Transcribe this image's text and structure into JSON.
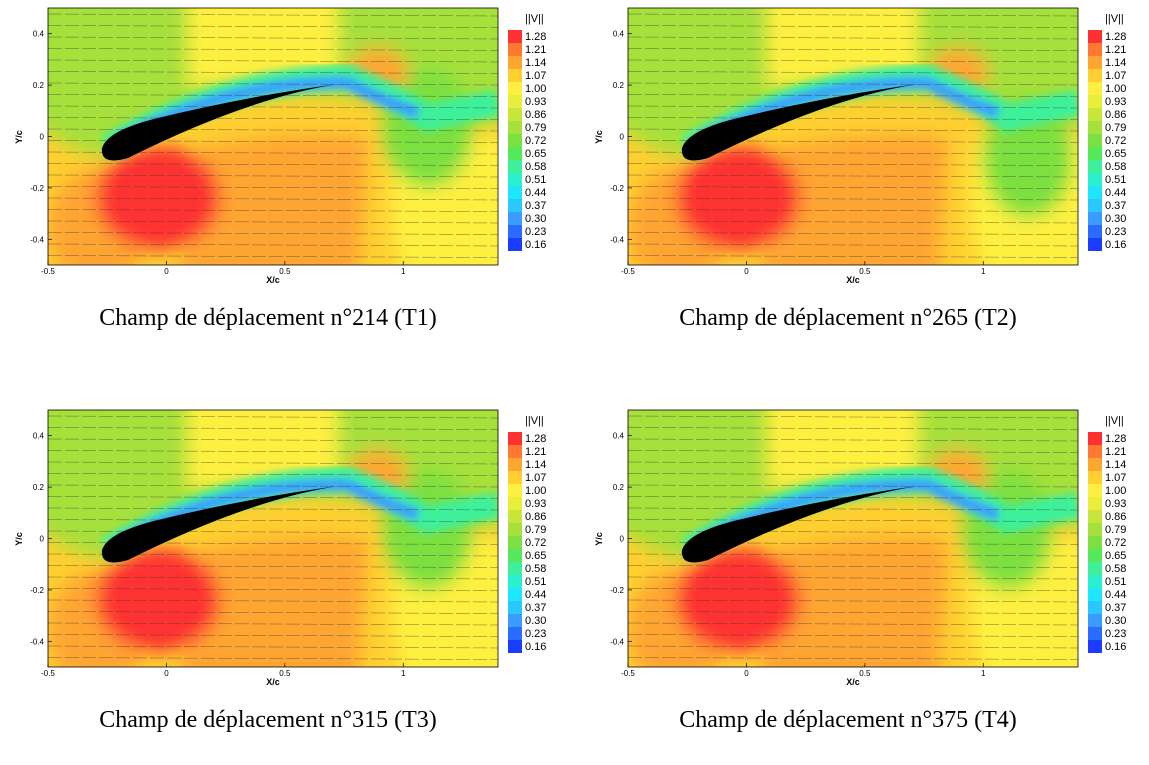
{
  "chart_data": [
    {
      "type": "contour",
      "caption": "Champ de déplacement n°214 (T1)",
      "x_label": "X/c",
      "y_label": "Y/c",
      "colorbar_title": "||V||",
      "xlim": [
        -0.5,
        1.4
      ],
      "ylim": [
        -0.5,
        0.5
      ],
      "xticks": [
        -0.5,
        0,
        0.5,
        1
      ],
      "yticks": [
        -0.4,
        -0.2,
        0,
        0.2,
        0.4
      ],
      "levels": [
        0.16,
        0.23,
        {
          "value": 0.3,
          "label": "0.30"
        },
        0.37,
        0.44,
        0.51,
        0.58,
        0.65,
        0.72,
        0.79,
        0.86,
        0.93,
        {
          "value": 1,
          "label": "1.00"
        },
        1.07,
        1.14,
        1.21,
        1.28
      ],
      "colors": [
        "#1a3cff",
        "#2a6cff",
        "#3a9cff",
        "#29c8ff",
        "#1ee6ff",
        "#2af0d0",
        "#3ef09a",
        "#55e85a",
        "#7be040",
        "#a6e03a",
        "#c8e63a",
        "#e8ee3a",
        "#fff040",
        "#ffd030",
        "#ffa630",
        "#ff7a30",
        "#ff3030"
      ]
    },
    {
      "type": "contour",
      "caption": "Champ de déplacement n°265 (T2)",
      "x_label": "X/c",
      "y_label": "Y/c",
      "colorbar_title": "||V||",
      "xlim": [
        -0.5,
        1.4
      ],
      "ylim": [
        -0.5,
        0.5
      ],
      "xticks": [
        -0.5,
        0,
        0.5,
        1
      ],
      "yticks": [
        -0.4,
        -0.2,
        0,
        0.2,
        0.4
      ],
      "levels": [
        0.16,
        0.23,
        {
          "value": 0.3,
          "label": "0.30"
        },
        0.37,
        0.44,
        0.51,
        0.58,
        0.65,
        0.72,
        0.79,
        0.86,
        0.93,
        {
          "value": 1,
          "label": "1.00"
        },
        1.07,
        1.14,
        1.21,
        1.28
      ],
      "colors": [
        "#1a3cff",
        "#2a6cff",
        "#3a9cff",
        "#29c8ff",
        "#1ee6ff",
        "#2af0d0",
        "#3ef09a",
        "#55e85a",
        "#7be040",
        "#a6e03a",
        "#c8e63a",
        "#e8ee3a",
        "#fff040",
        "#ffd030",
        "#ffa630",
        "#ff7a30",
        "#ff3030"
      ]
    },
    {
      "type": "contour",
      "caption": "Champ de déplacement n°315 (T3)",
      "x_label": "X/c",
      "y_label": "Y/c",
      "colorbar_title": "||V||",
      "xlim": [
        -0.5,
        1.4
      ],
      "ylim": [
        -0.5,
        0.5
      ],
      "xticks": [
        -0.5,
        0,
        0.5,
        1
      ],
      "yticks": [
        -0.4,
        -0.2,
        0,
        0.2,
        0.4
      ],
      "levels": [
        0.16,
        0.23,
        {
          "value": 0.3,
          "label": "0.30"
        },
        0.37,
        0.44,
        0.51,
        0.58,
        0.65,
        0.72,
        0.79,
        0.86,
        0.93,
        {
          "value": 1,
          "label": "1.00"
        },
        1.07,
        1.14,
        1.21,
        1.28
      ],
      "colors": [
        "#1a3cff",
        "#2a6cff",
        "#3a9cff",
        "#29c8ff",
        "#1ee6ff",
        "#2af0d0",
        "#3ef09a",
        "#55e85a",
        "#7be040",
        "#a6e03a",
        "#c8e63a",
        "#e8ee3a",
        "#fff040",
        "#ffd030",
        "#ffa630",
        "#ff7a30",
        "#ff3030"
      ]
    },
    {
      "type": "contour",
      "caption": "Champ de déplacement n°375 (T4)",
      "x_label": "X/c",
      "y_label": "Y/c",
      "colorbar_title": "||V||",
      "xlim": [
        -0.5,
        1.4
      ],
      "ylim": [
        -0.5,
        0.5
      ],
      "xticks": [
        -0.5,
        0,
        0.5,
        1
      ],
      "yticks": [
        -0.4,
        -0.2,
        0,
        0.2,
        0.4
      ],
      "levels": [
        0.16,
        0.23,
        {
          "value": 0.3,
          "label": "0.30"
        },
        0.37,
        0.44,
        0.51,
        0.58,
        0.65,
        0.72,
        0.79,
        0.86,
        0.93,
        {
          "value": 1,
          "label": "1.00"
        },
        1.07,
        1.14,
        1.21,
        1.28
      ],
      "colors": [
        "#1a3cff",
        "#2a6cff",
        "#3a9cff",
        "#29c8ff",
        "#1ee6ff",
        "#2af0d0",
        "#3ef09a",
        "#55e85a",
        "#7be040",
        "#a6e03a",
        "#c8e63a",
        "#e8ee3a",
        "#fff040",
        "#ffd030",
        "#ffa630",
        "#ff7a30",
        "#ff3030"
      ]
    }
  ]
}
